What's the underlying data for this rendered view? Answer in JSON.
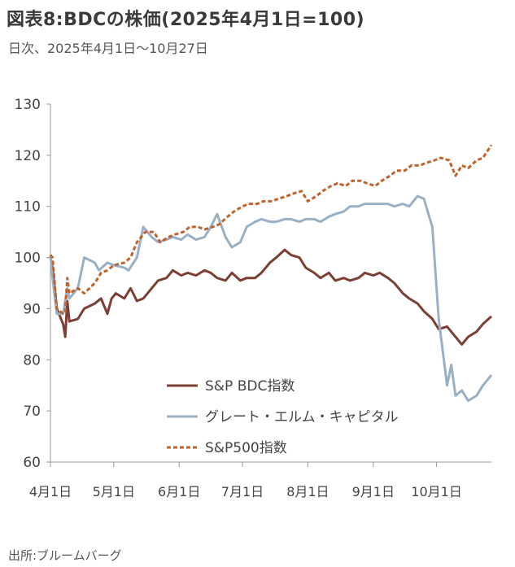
{
  "title": "図表8:BDCの株価(2025年4月1日=100)",
  "subtitle": "日次、2025年4月1日～10月27日",
  "source": "出所:ブルームバーグ",
  "chart_data": {
    "type": "line",
    "xlabel": "",
    "ylabel": "",
    "ylim": [
      60,
      130
    ],
    "yticks": [
      60,
      70,
      80,
      90,
      100,
      110,
      120,
      130
    ],
    "xlim": [
      "2025-04-01",
      "2025-10-27"
    ],
    "xticks": [
      {
        "date": "2025-04-01",
        "label": "4月1日"
      },
      {
        "date": "2025-05-01",
        "label": "5月1日"
      },
      {
        "date": "2025-06-01",
        "label": "6月1日"
      },
      {
        "date": "2025-07-01",
        "label": "7月1日"
      },
      {
        "date": "2025-08-01",
        "label": "8月1日"
      },
      {
        "date": "2025-09-01",
        "label": "9月1日"
      },
      {
        "date": "2025-10-01",
        "label": "10月1日"
      }
    ],
    "legend_position": "bottom-left inside plot",
    "grid": false,
    "series": [
      {
        "name": "S&P BDC指数",
        "color": "#7b3f33",
        "style": "solid",
        "points": [
          [
            "2025-04-01",
            100
          ],
          [
            "2025-04-02",
            98
          ],
          [
            "2025-04-04",
            90
          ],
          [
            "2025-04-07",
            87
          ],
          [
            "2025-04-08",
            84.5
          ],
          [
            "2025-04-09",
            91.5
          ],
          [
            "2025-04-10",
            87.5
          ],
          [
            "2025-04-14",
            88
          ],
          [
            "2025-04-17",
            90
          ],
          [
            "2025-04-22",
            91
          ],
          [
            "2025-04-25",
            92
          ],
          [
            "2025-04-28",
            89
          ],
          [
            "2025-04-30",
            92
          ],
          [
            "2025-05-02",
            93
          ],
          [
            "2025-05-06",
            92
          ],
          [
            "2025-05-09",
            94
          ],
          [
            "2025-05-12",
            91.5
          ],
          [
            "2025-05-15",
            92
          ],
          [
            "2025-05-19",
            94
          ],
          [
            "2025-05-22",
            95.5
          ],
          [
            "2025-05-26",
            96
          ],
          [
            "2025-05-29",
            97.5
          ],
          [
            "2025-06-02",
            96.5
          ],
          [
            "2025-06-05",
            97
          ],
          [
            "2025-06-09",
            96.5
          ],
          [
            "2025-06-13",
            97.5
          ],
          [
            "2025-06-16",
            97
          ],
          [
            "2025-06-19",
            96
          ],
          [
            "2025-06-23",
            95.5
          ],
          [
            "2025-06-26",
            97
          ],
          [
            "2025-06-30",
            95.5
          ],
          [
            "2025-07-03",
            96
          ],
          [
            "2025-07-07",
            96
          ],
          [
            "2025-07-10",
            97
          ],
          [
            "2025-07-14",
            99
          ],
          [
            "2025-07-17",
            100
          ],
          [
            "2025-07-21",
            101.5
          ],
          [
            "2025-07-24",
            100.5
          ],
          [
            "2025-07-28",
            100
          ],
          [
            "2025-07-31",
            98
          ],
          [
            "2025-08-04",
            97
          ],
          [
            "2025-08-07",
            96
          ],
          [
            "2025-08-11",
            97
          ],
          [
            "2025-08-14",
            95.5
          ],
          [
            "2025-08-18",
            96
          ],
          [
            "2025-08-21",
            95.5
          ],
          [
            "2025-08-25",
            96
          ],
          [
            "2025-08-28",
            97
          ],
          [
            "2025-09-01",
            96.5
          ],
          [
            "2025-09-04",
            97
          ],
          [
            "2025-09-08",
            96
          ],
          [
            "2025-09-11",
            95
          ],
          [
            "2025-09-15",
            93
          ],
          [
            "2025-09-18",
            92
          ],
          [
            "2025-09-22",
            91
          ],
          [
            "2025-09-25",
            89.5
          ],
          [
            "2025-09-29",
            88
          ],
          [
            "2025-10-02",
            86
          ],
          [
            "2025-10-06",
            86.5
          ],
          [
            "2025-10-09",
            85
          ],
          [
            "2025-10-13",
            83
          ],
          [
            "2025-10-16",
            84.5
          ],
          [
            "2025-10-20",
            85.5
          ],
          [
            "2025-10-23",
            87
          ],
          [
            "2025-10-27",
            88.5
          ]
        ]
      },
      {
        "name": "グレート・エルム・キャピタル",
        "color": "#9ab0c4",
        "style": "solid",
        "points": [
          [
            "2025-04-01",
            100.5
          ],
          [
            "2025-04-02",
            96
          ],
          [
            "2025-04-04",
            89
          ],
          [
            "2025-04-07",
            89
          ],
          [
            "2025-04-09",
            94
          ],
          [
            "2025-04-10",
            92
          ],
          [
            "2025-04-14",
            94
          ],
          [
            "2025-04-17",
            100
          ],
          [
            "2025-04-22",
            99
          ],
          [
            "2025-04-24",
            97.5
          ],
          [
            "2025-04-28",
            99
          ],
          [
            "2025-05-01",
            98.5
          ],
          [
            "2025-05-06",
            98
          ],
          [
            "2025-05-08",
            97.5
          ],
          [
            "2025-05-12",
            100
          ],
          [
            "2025-05-15",
            106
          ],
          [
            "2025-05-19",
            104
          ],
          [
            "2025-05-22",
            103
          ],
          [
            "2025-05-26",
            103.5
          ],
          [
            "2025-05-29",
            104
          ],
          [
            "2025-06-02",
            103.5
          ],
          [
            "2025-06-05",
            104.5
          ],
          [
            "2025-06-09",
            103.5
          ],
          [
            "2025-06-13",
            104
          ],
          [
            "2025-06-16",
            106
          ],
          [
            "2025-06-19",
            108.5
          ],
          [
            "2025-06-23",
            104
          ],
          [
            "2025-06-26",
            102
          ],
          [
            "2025-06-30",
            103
          ],
          [
            "2025-07-03",
            106
          ],
          [
            "2025-07-07",
            107
          ],
          [
            "2025-07-10",
            107.5
          ],
          [
            "2025-07-14",
            107
          ],
          [
            "2025-07-17",
            107
          ],
          [
            "2025-07-21",
            107.5
          ],
          [
            "2025-07-24",
            107.5
          ],
          [
            "2025-07-28",
            107
          ],
          [
            "2025-07-31",
            107.5
          ],
          [
            "2025-08-04",
            107.5
          ],
          [
            "2025-08-07",
            107
          ],
          [
            "2025-08-11",
            108
          ],
          [
            "2025-08-14",
            108.5
          ],
          [
            "2025-08-18",
            109
          ],
          [
            "2025-08-21",
            110
          ],
          [
            "2025-08-25",
            110
          ],
          [
            "2025-08-28",
            110.5
          ],
          [
            "2025-09-01",
            110.5
          ],
          [
            "2025-09-04",
            110.5
          ],
          [
            "2025-09-08",
            110.5
          ],
          [
            "2025-09-11",
            110
          ],
          [
            "2025-09-15",
            110.5
          ],
          [
            "2025-09-18",
            110
          ],
          [
            "2025-09-22",
            112
          ],
          [
            "2025-09-25",
            111.5
          ],
          [
            "2025-09-29",
            106
          ],
          [
            "2025-10-02",
            88
          ],
          [
            "2025-10-06",
            75
          ],
          [
            "2025-10-08",
            79
          ],
          [
            "2025-10-10",
            73
          ],
          [
            "2025-10-13",
            74
          ],
          [
            "2025-10-16",
            72
          ],
          [
            "2025-10-20",
            73
          ],
          [
            "2025-10-23",
            75
          ],
          [
            "2025-10-27",
            77
          ]
        ]
      },
      {
        "name": "S&P500指数",
        "color": "#c0622e",
        "style": "dashed",
        "points": [
          [
            "2025-04-01",
            100.5
          ],
          [
            "2025-04-02",
            100
          ],
          [
            "2025-04-04",
            90
          ],
          [
            "2025-04-07",
            89
          ],
          [
            "2025-04-08",
            89.5
          ],
          [
            "2025-04-09",
            96
          ],
          [
            "2025-04-10",
            93
          ],
          [
            "2025-04-14",
            94
          ],
          [
            "2025-04-17",
            93
          ],
          [
            "2025-04-22",
            95
          ],
          [
            "2025-04-25",
            97
          ],
          [
            "2025-04-28",
            97.5
          ],
          [
            "2025-05-01",
            98.5
          ],
          [
            "2025-05-06",
            99
          ],
          [
            "2025-05-09",
            100
          ],
          [
            "2025-05-12",
            103
          ],
          [
            "2025-05-16",
            105
          ],
          [
            "2025-05-20",
            105
          ],
          [
            "2025-05-23",
            103
          ],
          [
            "2025-05-27",
            104
          ],
          [
            "2025-05-30",
            104.5
          ],
          [
            "2025-06-03",
            105
          ],
          [
            "2025-06-06",
            106
          ],
          [
            "2025-06-10",
            106
          ],
          [
            "2025-06-13",
            105.5
          ],
          [
            "2025-06-17",
            106
          ],
          [
            "2025-06-20",
            106.5
          ],
          [
            "2025-06-24",
            108
          ],
          [
            "2025-06-27",
            109
          ],
          [
            "2025-07-01",
            110
          ],
          [
            "2025-07-04",
            110.5
          ],
          [
            "2025-07-08",
            110.5
          ],
          [
            "2025-07-11",
            111
          ],
          [
            "2025-07-15",
            111
          ],
          [
            "2025-07-18",
            111.5
          ],
          [
            "2025-07-22",
            112
          ],
          [
            "2025-07-25",
            112.5
          ],
          [
            "2025-07-29",
            113
          ],
          [
            "2025-08-01",
            111
          ],
          [
            "2025-08-05",
            112
          ],
          [
            "2025-08-08",
            113
          ],
          [
            "2025-08-12",
            114
          ],
          [
            "2025-08-15",
            114.5
          ],
          [
            "2025-08-19",
            114
          ],
          [
            "2025-08-22",
            115
          ],
          [
            "2025-08-26",
            115
          ],
          [
            "2025-08-29",
            114.5
          ],
          [
            "2025-09-02",
            114
          ],
          [
            "2025-09-05",
            115
          ],
          [
            "2025-09-09",
            116
          ],
          [
            "2025-09-12",
            117
          ],
          [
            "2025-09-16",
            117
          ],
          [
            "2025-09-19",
            118
          ],
          [
            "2025-09-23",
            118
          ],
          [
            "2025-09-26",
            118.5
          ],
          [
            "2025-09-30",
            119
          ],
          [
            "2025-10-03",
            119.5
          ],
          [
            "2025-10-07",
            119
          ],
          [
            "2025-10-10",
            116
          ],
          [
            "2025-10-13",
            118
          ],
          [
            "2025-10-16",
            117.5
          ],
          [
            "2025-10-20",
            119
          ],
          [
            "2025-10-23",
            119.5
          ],
          [
            "2025-10-27",
            122
          ]
        ]
      }
    ]
  }
}
